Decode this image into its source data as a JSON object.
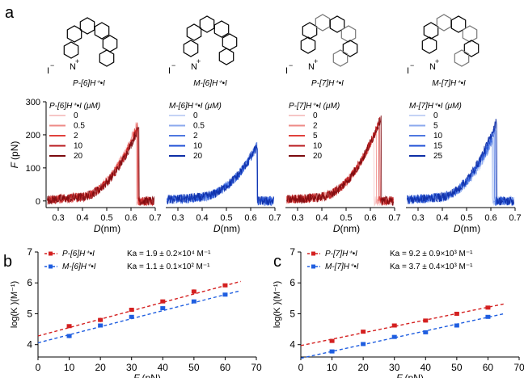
{
  "panel_labels": {
    "a": "a",
    "b": "b",
    "c": "c"
  },
  "molecules": [
    {
      "name": "P-[6]H⁺•I",
      "charge": "+",
      "counterion": "I",
      "counterion_charge": "−",
      "atom": "N"
    },
    {
      "name": "M-[6]H⁺•I",
      "charge": "+",
      "counterion": "I",
      "counterion_charge": "−",
      "atom": "N"
    },
    {
      "name": "P-[7]H⁺•I",
      "charge": "+",
      "counterion": "I",
      "counterion_charge": "−",
      "atom": "N"
    },
    {
      "name": "M-[7]H⁺•I",
      "charge": "+",
      "counterion": "I",
      "counterion_charge": "−",
      "atom": "N"
    }
  ],
  "colors": {
    "red_shades": [
      "#f6c6c6",
      "#ee8a86",
      "#e0413d",
      "#b8191d",
      "#7c0a0e"
    ],
    "blue_shades": [
      "#c5d3f5",
      "#8ba9ee",
      "#4f78e0",
      "#1f4fd6",
      "#0d2ea6"
    ],
    "red": "#d42020",
    "blue": "#1f5ee0"
  },
  "chart_data": [
    {
      "type": "line",
      "panel": "a",
      "legend_title": "P-[6]H⁺•I  (μM)",
      "xlabel": "D(nm)",
      "ylabel": "F (pN)",
      "xlim": [
        0.25,
        0.7
      ],
      "ylim": [
        -20,
        300
      ],
      "xticks": [
        "0.3",
        "0.4",
        "0.5",
        "0.6",
        "0.7"
      ],
      "yticks": [
        "0",
        "100",
        "200",
        "300"
      ],
      "series": [
        {
          "name": "0",
          "rupture_D": 0.622,
          "peak_F": 228
        },
        {
          "name": "0.5",
          "rupture_D": 0.624,
          "peak_F": 225
        },
        {
          "name": "2",
          "rupture_D": 0.628,
          "peak_F": 230
        },
        {
          "name": "10",
          "rupture_D": 0.63,
          "peak_F": 222
        },
        {
          "name": "20",
          "rupture_D": 0.633,
          "peak_F": 226
        }
      ]
    },
    {
      "type": "line",
      "panel": "a",
      "legend_title": "M-[6]H⁺•I  (μM)",
      "xlabel": "D(nm)",
      "ylabel": "",
      "xlim": [
        0.25,
        0.7
      ],
      "ylim": [
        -20,
        300
      ],
      "xticks": [
        "0.3",
        "0.4",
        "0.5",
        "0.6",
        "0.7"
      ],
      "yticks": [],
      "series": [
        {
          "name": "0",
          "rupture_D": 0.625,
          "peak_F": 168
        },
        {
          "name": "0.5",
          "rupture_D": 0.626,
          "peak_F": 166
        },
        {
          "name": "2",
          "rupture_D": 0.627,
          "peak_F": 170
        },
        {
          "name": "10",
          "rupture_D": 0.628,
          "peak_F": 165
        },
        {
          "name": "20",
          "rupture_D": 0.629,
          "peak_F": 169
        }
      ]
    },
    {
      "type": "line",
      "panel": "a",
      "legend_title": "P-[7]H⁺•I  (μM)",
      "xlabel": "D(nm)",
      "ylabel": "",
      "xlim": [
        0.25,
        0.7
      ],
      "ylim": [
        -20,
        300
      ],
      "xticks": [
        "0.3",
        "0.4",
        "0.5",
        "0.6",
        "0.7"
      ],
      "yticks": [],
      "series": [
        {
          "name": "0",
          "rupture_D": 0.615,
          "peak_F": 200
        },
        {
          "name": "2",
          "rupture_D": 0.625,
          "peak_F": 215
        },
        {
          "name": "5",
          "rupture_D": 0.635,
          "peak_F": 235
        },
        {
          "name": "10",
          "rupture_D": 0.64,
          "peak_F": 245
        },
        {
          "name": "20",
          "rupture_D": 0.645,
          "peak_F": 255
        }
      ]
    },
    {
      "type": "line",
      "panel": "a",
      "legend_title": "M-[7]H⁺•I  (μM)",
      "xlabel": "D(nm)",
      "ylabel": "",
      "xlim": [
        0.25,
        0.7
      ],
      "ylim": [
        -20,
        300
      ],
      "xticks": [
        "0.3",
        "0.4",
        "0.5",
        "0.6",
        "0.7"
      ],
      "yticks": [],
      "series": [
        {
          "name": "0",
          "rupture_D": 0.605,
          "peak_F": 178
        },
        {
          "name": "5",
          "rupture_D": 0.61,
          "peak_F": 190
        },
        {
          "name": "10",
          "rupture_D": 0.615,
          "peak_F": 205
        },
        {
          "name": "15",
          "rupture_D": 0.62,
          "peak_F": 225
        },
        {
          "name": "25",
          "rupture_D": 0.625,
          "peak_F": 245
        }
      ]
    },
    {
      "type": "scatter",
      "panel": "b",
      "xlabel": "F (pN)",
      "ylabel": "log(K )(M⁻¹)",
      "xlim": [
        0,
        70
      ],
      "ylim": [
        3.6,
        7
      ],
      "xticks": [
        "0",
        "10",
        "20",
        "30",
        "40",
        "50",
        "60",
        "70"
      ],
      "yticks": [
        "4",
        "5",
        "6",
        "7"
      ],
      "series": [
        {
          "name": "P-[6]H⁺•I",
          "ka": "Ka = 1.9 ± 0.2×10⁴ M⁻¹",
          "color": "#d42020",
          "x": [
            10,
            20,
            30,
            40,
            50,
            60
          ],
          "y": [
            4.6,
            4.8,
            5.13,
            5.4,
            5.72,
            5.92
          ],
          "err": [
            0.06,
            0.07,
            0.06,
            0.06,
            0.07,
            0.06
          ],
          "fit": {
            "intercept": 4.28,
            "slope": 0.0272
          }
        },
        {
          "name": "M-[6]H⁺•I",
          "ka": "Ka = 1.1 ± 0.1×10² M⁻¹",
          "color": "#1f5ee0",
          "x": [
            10,
            20,
            30,
            40,
            50,
            60
          ],
          "y": [
            4.28,
            4.62,
            4.9,
            5.18,
            5.4,
            5.62
          ],
          "err": [
            0.07,
            0.06,
            0.06,
            0.06,
            0.06,
            0.06
          ],
          "fit": {
            "intercept": 4.06,
            "slope": 0.026
          }
        }
      ]
    },
    {
      "type": "scatter",
      "panel": "c",
      "xlabel": "F (pN)",
      "ylabel": "log(K )(M⁻¹)",
      "xlim": [
        0,
        70
      ],
      "ylim": [
        3.6,
        7
      ],
      "xticks": [
        "0",
        "10",
        "20",
        "30",
        "40",
        "50",
        "60",
        "70"
      ],
      "yticks": [
        "4",
        "5",
        "6",
        "7"
      ],
      "series": [
        {
          "name": "P-[7]H⁺•I",
          "ka": "Ka = 9.2 ± 0.9×10³ M⁻¹",
          "color": "#d42020",
          "x": [
            10,
            20,
            30,
            40,
            50,
            60
          ],
          "y": [
            4.12,
            4.42,
            4.62,
            4.78,
            5.0,
            5.2
          ],
          "err": [
            0.06,
            0.06,
            0.06,
            0.06,
            0.06,
            0.06
          ],
          "fit": {
            "intercept": 3.97,
            "slope": 0.0207
          }
        },
        {
          "name": "M-[7]H⁺•I",
          "ka": "Ka = 3.7 ± 0.4×10³ M⁻¹",
          "color": "#1f5ee0",
          "x": [
            10,
            20,
            30,
            40,
            50,
            60
          ],
          "y": [
            3.78,
            4.02,
            4.25,
            4.4,
            4.62,
            4.9
          ],
          "err": [
            0.05,
            0.06,
            0.06,
            0.06,
            0.06,
            0.06
          ],
          "fit": {
            "intercept": 3.56,
            "slope": 0.0221
          }
        }
      ]
    }
  ]
}
